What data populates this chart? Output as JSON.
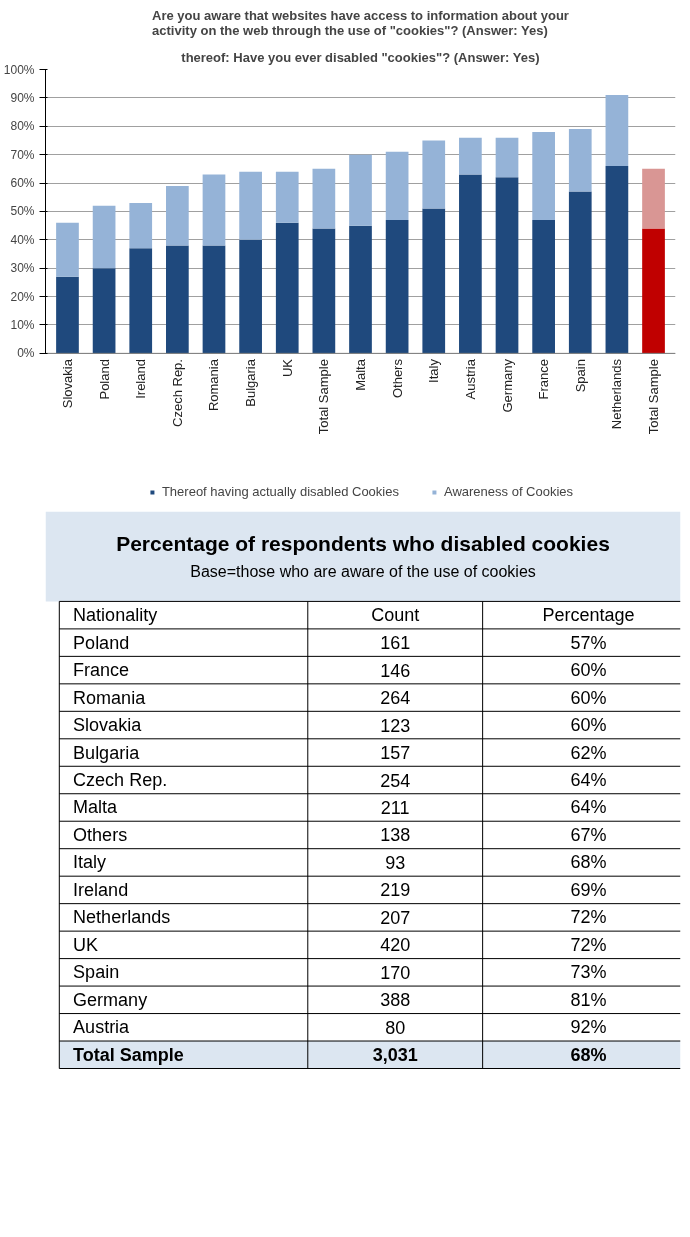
{
  "chart_data": [
    {
      "type": "bar",
      "title": "Are you aware that websites have access to information about your activity on the web through the use of \"cookies\"? (Answer: Yes)",
      "subtitle": "thereof: Have you ever disabled \"cookies\"? (Answer: Yes)",
      "categories": [
        "Slovakia",
        "Poland",
        "Ireland",
        "Czech Rep.",
        "Romania",
        "Bulgaria",
        "UK",
        "Total Sample",
        "Malta",
        "Others",
        "Italy",
        "Austria",
        "Germany",
        "France",
        "Spain",
        "Netherlands",
        "Total Sample"
      ],
      "stacked": true,
      "series": [
        {
          "name": "Thereof having actually disabled Cookies",
          "color": "#1f497d",
          "colors": [
            "#1f497d",
            "#1f497d",
            "#1f497d",
            "#1f497d",
            "#1f497d",
            "#1f497d",
            "#1f497d",
            "#1f497d",
            "#1f497d",
            "#1f497d",
            "#1f497d",
            "#1f497d",
            "#1f497d",
            "#1f497d",
            "#1f497d",
            "#1f497d",
            "#c00000"
          ],
          "values": [
            27,
            30,
            37,
            38,
            38,
            40,
            46,
            44,
            45,
            47,
            51,
            63,
            62,
            47,
            57,
            66,
            44
          ]
        },
        {
          "name": "Awareness of Cookies",
          "color": "#95b3d7",
          "colors": [
            "#95b3d7",
            "#95b3d7",
            "#95b3d7",
            "#95b3d7",
            "#95b3d7",
            "#95b3d7",
            "#95b3d7",
            "#95b3d7",
            "#95b3d7",
            "#95b3d7",
            "#95b3d7",
            "#95b3d7",
            "#95b3d7",
            "#95b3d7",
            "#95b3d7",
            "#95b3d7",
            "#d99694"
          ],
          "values": [
            19,
            22,
            16,
            21,
            25,
            24,
            18,
            21,
            25,
            24,
            24,
            13,
            14,
            31,
            22,
            25,
            21
          ]
        }
      ],
      "ylim": [
        0,
        100
      ],
      "yticks": [
        {
          "value": 0,
          "label": "0%"
        },
        {
          "value": 10,
          "label": "10%"
        },
        {
          "value": 20,
          "label": "20%"
        },
        {
          "value": 30,
          "label": "30%"
        },
        {
          "value": 40,
          "label": "40%"
        },
        {
          "value": 50,
          "label": "50%"
        },
        {
          "value": 60,
          "label": "60%"
        },
        {
          "value": 70,
          "label": "70%"
        },
        {
          "value": 80,
          "label": "80%"
        },
        {
          "value": 90,
          "label": "90%"
        },
        {
          "value": 100,
          "label": "100%"
        }
      ],
      "grid": "y",
      "legend": "bottom"
    },
    {
      "type": "other",
      "title": "Percentage of respondents who disabled cookies",
      "subtitle": "Base=those who are aware of the use of cookies",
      "ylabel": "Nationality",
      "categories": [
        "Poland",
        "France",
        "Romania",
        "Slovakia",
        "Bulgaria",
        "Czech Rep.",
        "Malta",
        "Others",
        "Italy",
        "Ireland",
        "Netherlands",
        "UK",
        "Spain",
        "Germany",
        "Austria",
        "Total Sample"
      ],
      "series": [
        {
          "name": "Count",
          "values": [
            161,
            146,
            264,
            123,
            157,
            254,
            211,
            138,
            93,
            219,
            207,
            420,
            170,
            388,
            80,
            3031
          ],
          "value_labels": [
            "161",
            "146",
            "264",
            "123",
            "157",
            "254",
            "211",
            "138",
            "93",
            "219",
            "207",
            "420",
            "170",
            "388",
            "80",
            "3,031"
          ]
        },
        {
          "name": "Percentage",
          "values": [
            57,
            60,
            60,
            60,
            62,
            64,
            64,
            67,
            68,
            69,
            72,
            72,
            73,
            81,
            92,
            68
          ],
          "value_labels": [
            "57%",
            "60%",
            "60%",
            "60%",
            "62%",
            "64%",
            "64%",
            "67%",
            "68%",
            "69%",
            "72%",
            "72%",
            "73%",
            "81%",
            "92%",
            "68%"
          ]
        }
      ]
    }
  ]
}
